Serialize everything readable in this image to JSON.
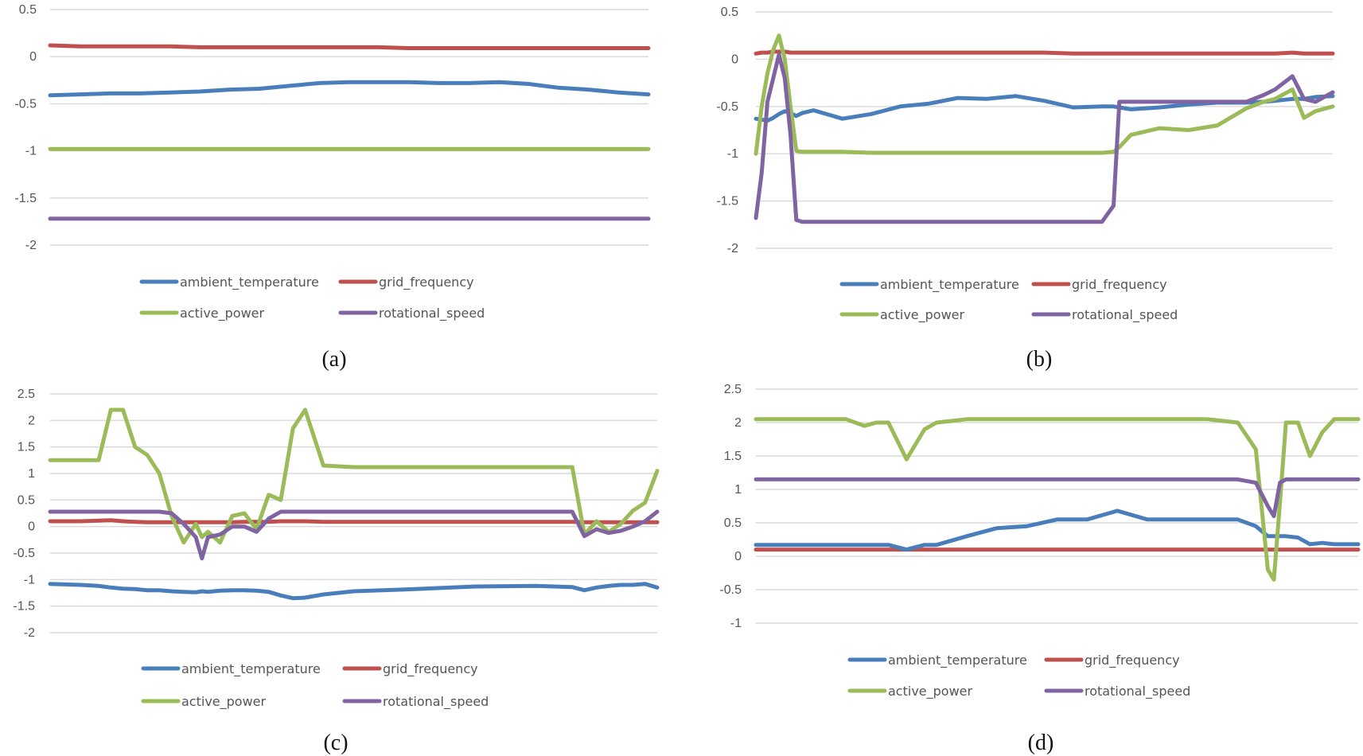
{
  "colors": {
    "ambient_temperature": "#4a7ebb",
    "grid_frequency": "#c0504d",
    "active_power": "#9bbb59",
    "rotational_speed": "#8064a2"
  },
  "chart_data": [
    {
      "type": "line",
      "caption": "(a)",
      "ylim": [
        -2,
        0.5
      ],
      "yticks": [
        0.5,
        0,
        -0.5,
        -1,
        -1.5,
        -2
      ],
      "ytick_labels": [
        "0.5",
        "0",
        "-0.5",
        "-1",
        "-1.5",
        "-2"
      ],
      "grid": true,
      "x": [
        0,
        0.05,
        0.1,
        0.15,
        0.2,
        0.25,
        0.3,
        0.35,
        0.4,
        0.45,
        0.5,
        0.55,
        0.6,
        0.65,
        0.7,
        0.75,
        0.8,
        0.85,
        0.9,
        0.95,
        1
      ],
      "series": [
        {
          "name": "ambient_temperature",
          "values": [
            -0.41,
            -0.4,
            -0.39,
            -0.39,
            -0.38,
            -0.37,
            -0.35,
            -0.34,
            -0.31,
            -0.28,
            -0.27,
            -0.27,
            -0.27,
            -0.28,
            -0.28,
            -0.27,
            -0.29,
            -0.33,
            -0.35,
            -0.38,
            -0.4
          ]
        },
        {
          "name": "grid_frequency",
          "values": [
            0.12,
            0.11,
            0.11,
            0.11,
            0.11,
            0.1,
            0.1,
            0.1,
            0.1,
            0.1,
            0.1,
            0.1,
            0.09,
            0.09,
            0.09,
            0.09,
            0.09,
            0.09,
            0.09,
            0.09,
            0.09
          ]
        },
        {
          "name": "active_power",
          "values": [
            -0.98,
            -0.98,
            -0.98,
            -0.98,
            -0.98,
            -0.98,
            -0.98,
            -0.98,
            -0.98,
            -0.98,
            -0.98,
            -0.98,
            -0.98,
            -0.98,
            -0.98,
            -0.98,
            -0.98,
            -0.98,
            -0.98,
            -0.98,
            -0.98
          ]
        },
        {
          "name": "rotational_speed",
          "values": [
            -1.72,
            -1.72,
            -1.72,
            -1.72,
            -1.72,
            -1.72,
            -1.72,
            -1.72,
            -1.72,
            -1.72,
            -1.72,
            -1.72,
            -1.72,
            -1.72,
            -1.72,
            -1.72,
            -1.72,
            -1.72,
            -1.72,
            -1.72,
            -1.72
          ]
        }
      ],
      "legend": [
        "ambient_temperature",
        "grid_frequency",
        "active_power",
        "rotational_speed"
      ],
      "legend_position": "bottom"
    },
    {
      "type": "line",
      "caption": "(b)",
      "ylim": [
        -2,
        0.5
      ],
      "yticks": [
        0.5,
        0,
        -0.5,
        -1,
        -1.5,
        -2
      ],
      "ytick_labels": [
        "0.5",
        "0",
        "-0.5",
        "-1",
        "-1.5",
        "-2"
      ],
      "grid": true,
      "x": [
        0,
        0.01,
        0.02,
        0.03,
        0.04,
        0.05,
        0.06,
        0.07,
        0.08,
        0.1,
        0.15,
        0.2,
        0.25,
        0.3,
        0.35,
        0.4,
        0.45,
        0.5,
        0.55,
        0.6,
        0.62,
        0.63,
        0.65,
        0.7,
        0.75,
        0.8,
        0.85,
        0.88,
        0.9,
        0.93,
        0.95,
        0.97,
        1
      ],
      "series": [
        {
          "name": "ambient_temperature",
          "values": [
            -0.63,
            -0.64,
            -0.65,
            -0.62,
            -0.58,
            -0.55,
            -0.57,
            -0.6,
            -0.57,
            -0.54,
            -0.63,
            -0.58,
            -0.5,
            -0.47,
            -0.41,
            -0.42,
            -0.39,
            -0.44,
            -0.51,
            -0.5,
            -0.5,
            -0.51,
            -0.53,
            -0.51,
            -0.48,
            -0.46,
            -0.46,
            -0.45,
            -0.44,
            -0.42,
            -0.42,
            -0.4,
            -0.39
          ]
        },
        {
          "name": "grid_frequency",
          "values": [
            0.06,
            0.07,
            0.07,
            0.08,
            0.08,
            0.08,
            0.07,
            0.07,
            0.07,
            0.07,
            0.07,
            0.07,
            0.07,
            0.07,
            0.07,
            0.07,
            0.07,
            0.07,
            0.06,
            0.06,
            0.06,
            0.06,
            0.06,
            0.06,
            0.06,
            0.06,
            0.06,
            0.06,
            0.06,
            0.07,
            0.06,
            0.06,
            0.06
          ]
        },
        {
          "name": "active_power",
          "values": [
            -1.0,
            -0.5,
            -0.15,
            0.1,
            0.25,
            0.0,
            -0.5,
            -0.97,
            -0.98,
            -0.98,
            -0.98,
            -0.99,
            -0.99,
            -0.99,
            -0.99,
            -0.99,
            -0.99,
            -0.99,
            -0.99,
            -0.99,
            -0.98,
            -0.93,
            -0.8,
            -0.73,
            -0.75,
            -0.7,
            -0.52,
            -0.45,
            -0.42,
            -0.32,
            -0.62,
            -0.55,
            -0.5
          ]
        },
        {
          "name": "rotational_speed",
          "values": [
            -1.68,
            -1.2,
            -0.45,
            -0.2,
            0.05,
            -0.2,
            -0.8,
            -1.7,
            -1.72,
            -1.72,
            -1.72,
            -1.72,
            -1.72,
            -1.72,
            -1.72,
            -1.72,
            -1.72,
            -1.72,
            -1.72,
            -1.72,
            -1.55,
            -0.45,
            -0.45,
            -0.45,
            -0.45,
            -0.45,
            -0.45,
            -0.38,
            -0.32,
            -0.18,
            -0.42,
            -0.45,
            -0.35
          ]
        }
      ],
      "legend": [
        "ambient_temperature",
        "grid_frequency",
        "active_power",
        "rotational_speed"
      ],
      "legend_position": "bottom"
    },
    {
      "type": "line",
      "caption": "(c)",
      "ylim": [
        -2,
        2.5
      ],
      "yticks": [
        2.5,
        2,
        1.5,
        1,
        0.5,
        0,
        -0.5,
        -1,
        -1.5,
        -2
      ],
      "ytick_labels": [
        "2.5",
        "2",
        "1.5",
        "1",
        "0.5",
        "0",
        "-0.5",
        "-1",
        "-1.5",
        "-2"
      ],
      "grid": true,
      "x": [
        0,
        0.05,
        0.08,
        0.1,
        0.12,
        0.14,
        0.16,
        0.18,
        0.2,
        0.22,
        0.24,
        0.25,
        0.26,
        0.28,
        0.3,
        0.32,
        0.34,
        0.36,
        0.38,
        0.4,
        0.42,
        0.45,
        0.5,
        0.6,
        0.7,
        0.8,
        0.86,
        0.88,
        0.9,
        0.92,
        0.94,
        0.96,
        0.98,
        1
      ],
      "series": [
        {
          "name": "ambient_temperature",
          "values": [
            -1.08,
            -1.1,
            -1.12,
            -1.15,
            -1.17,
            -1.18,
            -1.2,
            -1.2,
            -1.22,
            -1.23,
            -1.24,
            -1.22,
            -1.23,
            -1.21,
            -1.2,
            -1.2,
            -1.21,
            -1.23,
            -1.3,
            -1.35,
            -1.34,
            -1.28,
            -1.22,
            -1.18,
            -1.13,
            -1.12,
            -1.14,
            -1.2,
            -1.15,
            -1.12,
            -1.1,
            -1.1,
            -1.08,
            -1.15
          ]
        },
        {
          "name": "grid_frequency",
          "values": [
            0.1,
            0.1,
            0.11,
            0.12,
            0.1,
            0.09,
            0.08,
            0.08,
            0.08,
            0.08,
            0.08,
            0.08,
            0.08,
            0.08,
            0.08,
            0.09,
            0.09,
            0.09,
            0.1,
            0.1,
            0.1,
            0.09,
            0.09,
            0.09,
            0.09,
            0.09,
            0.09,
            0.08,
            0.08,
            0.08,
            0.08,
            0.08,
            0.08,
            0.08
          ]
        },
        {
          "name": "active_power",
          "values": [
            1.25,
            1.25,
            1.25,
            2.2,
            2.2,
            1.5,
            1.35,
            1.0,
            0.2,
            -0.3,
            0.05,
            -0.2,
            -0.1,
            -0.3,
            0.2,
            0.25,
            -0.05,
            0.6,
            0.5,
            1.85,
            2.2,
            1.15,
            1.12,
            1.12,
            1.12,
            1.12,
            1.12,
            -0.15,
            0.1,
            -0.1,
            0.05,
            0.3,
            0.45,
            1.05
          ]
        },
        {
          "name": "rotational_speed",
          "values": [
            0.28,
            0.28,
            0.28,
            0.28,
            0.28,
            0.28,
            0.28,
            0.28,
            0.25,
            0.05,
            -0.2,
            -0.6,
            -0.2,
            -0.15,
            0.0,
            0.0,
            -0.1,
            0.15,
            0.28,
            0.28,
            0.28,
            0.28,
            0.28,
            0.28,
            0.28,
            0.28,
            0.28,
            -0.18,
            -0.05,
            -0.12,
            -0.08,
            0.0,
            0.1,
            0.28
          ]
        }
      ],
      "legend": [
        "ambient_temperature",
        "grid_frequency",
        "active_power",
        "rotational_speed"
      ],
      "legend_position": "bottom"
    },
    {
      "type": "line",
      "caption": "(d)",
      "ylim": [
        -1,
        2.5
      ],
      "yticks": [
        2.5,
        2,
        1.5,
        1,
        0.5,
        0,
        -0.5,
        -1
      ],
      "ytick_labels": [
        "2.5",
        "2",
        "1.5",
        "1",
        "0.5",
        "0",
        "-0.5",
        "-1"
      ],
      "grid": true,
      "x": [
        0,
        0.05,
        0.1,
        0.15,
        0.18,
        0.2,
        0.22,
        0.25,
        0.28,
        0.3,
        0.35,
        0.4,
        0.45,
        0.5,
        0.55,
        0.6,
        0.65,
        0.7,
        0.75,
        0.8,
        0.83,
        0.85,
        0.86,
        0.87,
        0.88,
        0.9,
        0.92,
        0.94,
        0.96,
        1
      ],
      "series": [
        {
          "name": "ambient_temperature",
          "values": [
            0.17,
            0.17,
            0.17,
            0.17,
            0.17,
            0.17,
            0.17,
            0.1,
            0.17,
            0.17,
            0.3,
            0.42,
            0.45,
            0.55,
            0.55,
            0.68,
            0.55,
            0.55,
            0.55,
            0.55,
            0.45,
            0.3,
            0.3,
            0.3,
            0.3,
            0.28,
            0.18,
            0.2,
            0.18,
            0.18
          ]
        },
        {
          "name": "grid_frequency",
          "values": [
            0.1,
            0.1,
            0.1,
            0.1,
            0.1,
            0.1,
            0.1,
            0.1,
            0.1,
            0.1,
            0.1,
            0.1,
            0.1,
            0.1,
            0.1,
            0.1,
            0.1,
            0.1,
            0.1,
            0.1,
            0.1,
            0.1,
            0.1,
            0.1,
            0.1,
            0.1,
            0.1,
            0.1,
            0.1,
            0.1
          ]
        },
        {
          "name": "active_power",
          "values": [
            2.05,
            2.05,
            2.05,
            2.05,
            1.95,
            2.0,
            2.0,
            1.45,
            1.9,
            2.0,
            2.05,
            2.05,
            2.05,
            2.05,
            2.05,
            2.05,
            2.05,
            2.05,
            2.05,
            2.0,
            1.6,
            -0.2,
            -0.35,
            0.8,
            2.0,
            2.0,
            1.5,
            1.85,
            2.05,
            2.05
          ]
        },
        {
          "name": "rotational_speed",
          "values": [
            1.15,
            1.15,
            1.15,
            1.15,
            1.15,
            1.15,
            1.15,
            1.15,
            1.15,
            1.15,
            1.15,
            1.15,
            1.15,
            1.15,
            1.15,
            1.15,
            1.15,
            1.15,
            1.15,
            1.15,
            1.1,
            0.75,
            0.6,
            1.1,
            1.15,
            1.15,
            1.15,
            1.15,
            1.15,
            1.15
          ]
        }
      ],
      "legend": [
        "ambient_temperature",
        "grid_frequency",
        "active_power",
        "rotational_speed"
      ],
      "legend_position": "bottom"
    }
  ]
}
